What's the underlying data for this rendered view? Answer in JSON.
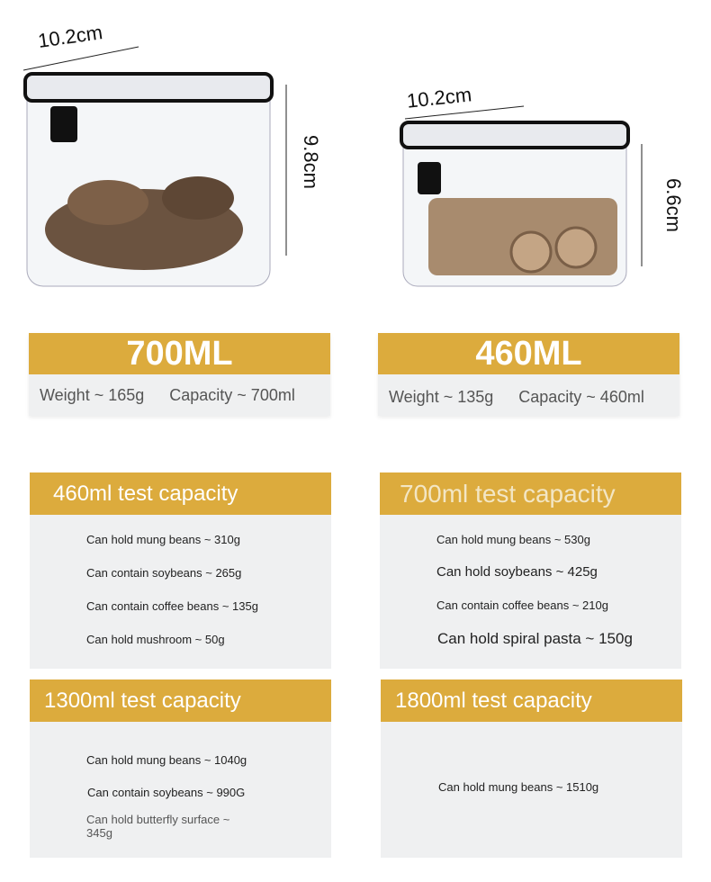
{
  "products": [
    {
      "width": "10.2cm",
      "height": "9.8cm",
      "title": "700ML",
      "weight": "Weight ~ 165g",
      "capacity": "Capacity ~ 700ml"
    },
    {
      "width": "10.2cm",
      "height": "6.6cm",
      "title": "460ML",
      "weight": "Weight ~ 135g",
      "capacity": "Capacity ~ 460ml"
    }
  ],
  "tests": [
    {
      "title": "460ml test capacity",
      "lines": [
        "Can hold mung beans ~ 310g",
        "Can contain soybeans ~ 265g",
        "Can contain coffee beans ~ 135g",
        "Can hold mushroom ~ 50g"
      ]
    },
    {
      "title": "700ml test capacity",
      "lines": [
        "Can hold mung beans ~ 530g",
        "Can hold soybeans ~ 425g",
        "Can contain coffee beans ~ 210g",
        "Can hold spiral pasta ~ 150g"
      ]
    },
    {
      "title": "1300ml test capacity",
      "lines": [
        "Can hold mung beans ~ 1040g",
        "Can contain soybeans ~ 990G",
        "Can hold butterfly surface ~ 345g"
      ]
    },
    {
      "title": "1800ml test capacity",
      "lines": [
        "Can hold mung beans ~ 1510g"
      ]
    }
  ],
  "colors": {
    "accent": "#dcab3d",
    "panel": "#eff0f1"
  }
}
